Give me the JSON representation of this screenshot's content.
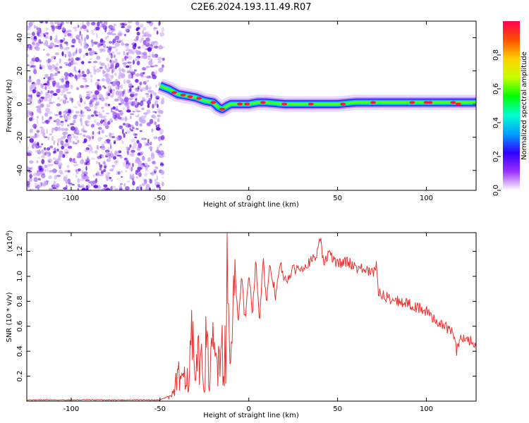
{
  "title": "C2E6.2024.193.11.49.R07",
  "colors": {
    "snr_line": "#e8322d",
    "ridge_hot": "#ff1a3c",
    "scatter": "#7a1ff0",
    "colorbar": [
      "#ffffff",
      "#9b30ff",
      "#3000ff",
      "#00a0ff",
      "#00ffd0",
      "#00ff00",
      "#c8ff00",
      "#ffd000",
      "#ff5000",
      "#ff0050"
    ]
  },
  "chart_data": [
    {
      "type": "heatmap",
      "title": "C2E6.2024.193.11.49.R07",
      "xlabel": "Height of straight line (km)",
      "ylabel": "Frequency (Hz)",
      "xlim": [
        -125,
        128
      ],
      "ylim": [
        -52,
        50
      ],
      "xticks": [
        -100,
        -50,
        0,
        50,
        100
      ],
      "yticks": [
        -40,
        -20,
        0,
        20,
        40
      ],
      "colorbar": {
        "label": "Normalized spectral amplitude",
        "range": [
          0,
          1
        ],
        "ticks": [
          "0.0",
          "0.2",
          "0.4",
          "0.6",
          "0.8"
        ]
      },
      "ridge": {
        "x": [
          -50,
          -45,
          -40,
          -35,
          -30,
          -25,
          -20,
          -17,
          -15,
          -12,
          -10,
          -5,
          0,
          5,
          10,
          20,
          30,
          40,
          50,
          60,
          70,
          80,
          90,
          100,
          110,
          120,
          128
        ],
        "y": [
          11,
          9,
          6,
          5,
          4,
          2,
          1,
          -2,
          -3,
          -1,
          0,
          0,
          0,
          1,
          1,
          0,
          0,
          0,
          0,
          1,
          1,
          1,
          1,
          1,
          1,
          1,
          1
        ]
      },
      "noise_region_x": [
        -125,
        -50
      ]
    },
    {
      "type": "line",
      "xlabel": "Height of straight line (km)",
      "ylabel": "SNR (10 * v/v)",
      "yunit": "(x10",
      "yunit_exp": "4",
      "yunit_close": ")",
      "xlim": [
        -125,
        128
      ],
      "ylim": [
        0,
        1.35
      ],
      "xticks": [
        -100,
        -50,
        0,
        50,
        100
      ],
      "yticks": [
        0.2,
        0.4,
        0.6,
        0.8,
        1.0,
        1.2
      ],
      "series": [
        {
          "x": [
            -125,
            -100,
            -70,
            -50,
            -45,
            -42,
            -40,
            -38,
            -36,
            -34,
            -32,
            -30,
            -28,
            -26,
            -24,
            -22,
            -20,
            -18,
            -16,
            -14,
            -12,
            -10,
            -8,
            -6,
            -4,
            -2,
            0,
            2,
            4,
            6,
            8,
            10,
            12,
            15,
            18,
            20,
            25,
            30,
            35,
            38,
            40,
            42,
            45,
            50,
            55,
            60,
            65,
            70,
            72,
            73,
            75,
            80,
            85,
            90,
            95,
            100,
            105,
            110,
            115,
            117,
            120,
            125,
            128
          ],
          "y": [
            0.01,
            0.01,
            0.01,
            0.01,
            0.04,
            0.09,
            0.35,
            0.15,
            0.58,
            0.2,
            0.78,
            0.1,
            0.9,
            0.2,
            0.65,
            0.28,
            0.62,
            0.45,
            0.88,
            0.4,
            1.32,
            0.55,
            1.15,
            0.6,
            1.0,
            0.62,
            1.05,
            0.72,
            1.12,
            0.65,
            1.15,
            0.78,
            1.08,
            0.85,
            1.1,
            0.95,
            1.05,
            1.08,
            1.12,
            1.15,
            1.35,
            1.1,
            1.18,
            1.1,
            1.12,
            1.08,
            1.05,
            1.02,
            1.1,
            0.88,
            0.85,
            0.82,
            0.8,
            0.78,
            0.75,
            0.72,
            0.65,
            0.6,
            0.55,
            0.4,
            0.52,
            0.48,
            0.45
          ]
        }
      ]
    }
  ]
}
